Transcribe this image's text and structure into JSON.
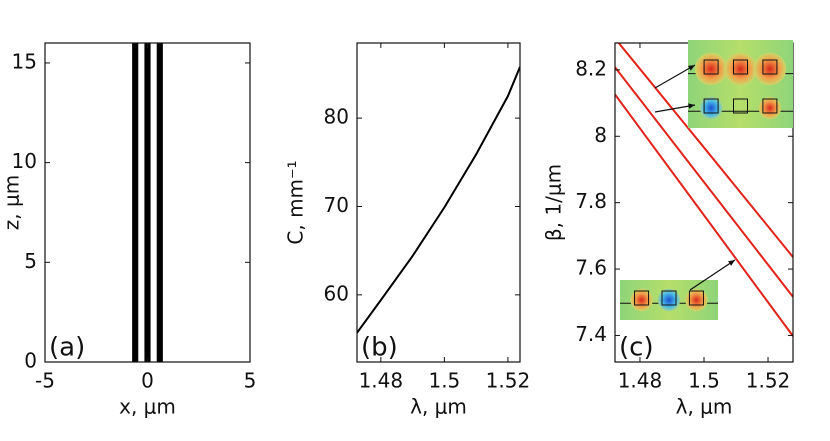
{
  "chart_data": [
    {
      "type": "stripes",
      "x_label": "x, μm",
      "y_label": "z, μm",
      "tag": "(a)",
      "x_ranges": [
        [
          -0.75,
          -0.45
        ],
        [
          -0.15,
          0.15
        ],
        [
          0.45,
          0.75
        ]
      ],
      "color": "#000000",
      "xlim": [
        -5,
        5
      ],
      "xticks": [
        -5,
        0,
        5
      ],
      "ylim": [
        0,
        16
      ],
      "yticks": [
        0,
        5,
        10,
        15
      ]
    },
    {
      "type": "line",
      "x_label": "λ, μm",
      "y_label": "C, mm⁻¹",
      "tag": "(b)",
      "x": [
        1.4725,
        1.48,
        1.49,
        1.5,
        1.51,
        1.52,
        1.5238
      ],
      "series": [
        {
          "color": "#000000",
          "values": [
            55.7,
            59.4,
            64.4,
            69.9,
            75.9,
            82.5,
            85.8
          ]
        }
      ],
      "xlim": [
        1.4725,
        1.5238
      ],
      "xticks": [
        1.48,
        1.5,
        1.52
      ],
      "ylim": [
        52.4,
        88.5
      ],
      "yticks": [
        60,
        70,
        80
      ]
    },
    {
      "type": "line",
      "x_label": "λ, μm",
      "y_label": "β, 1/μm",
      "tag": "(c)",
      "x": [
        1.4722,
        1.5,
        1.5278
      ],
      "series": [
        {
          "color": "#e2231a",
          "values": [
            8.295,
            7.966,
            7.636
          ]
        },
        {
          "color": "#e2231a",
          "values": [
            8.208,
            7.862,
            7.516
          ]
        },
        {
          "color": "#e2231a",
          "values": [
            8.126,
            7.762,
            7.398
          ]
        }
      ],
      "xlim": [
        1.4722,
        1.5278
      ],
      "xticks": [
        1.48,
        1.5,
        1.52
      ],
      "ylim": [
        7.32,
        8.281
      ],
      "yticks": [
        7.4,
        7.6,
        7.8,
        8,
        8.2
      ]
    }
  ]
}
